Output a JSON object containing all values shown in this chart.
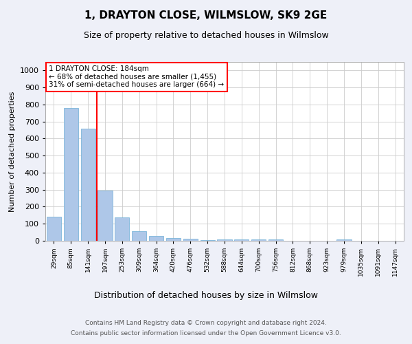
{
  "title": "1, DRAYTON CLOSE, WILMSLOW, SK9 2GE",
  "subtitle": "Size of property relative to detached houses in Wilmslow",
  "xlabel": "Distribution of detached houses by size in Wilmslow",
  "ylabel": "Number of detached properties",
  "bin_labels": [
    "29sqm",
    "85sqm",
    "141sqm",
    "197sqm",
    "253sqm",
    "309sqm",
    "364sqm",
    "420sqm",
    "476sqm",
    "532sqm",
    "588sqm",
    "644sqm",
    "700sqm",
    "756sqm",
    "812sqm",
    "868sqm",
    "923sqm",
    "979sqm",
    "1035sqm",
    "1091sqm",
    "1147sqm"
  ],
  "bar_heights": [
    140,
    778,
    660,
    295,
    138,
    55,
    28,
    18,
    13,
    5,
    10,
    10,
    10,
    8,
    1,
    0,
    0,
    10,
    0,
    0,
    0
  ],
  "bar_color": "#aec7e8",
  "bar_edge_color": "#6baed6",
  "vline_x_index": 3,
  "vline_color": "red",
  "annotation_text": "1 DRAYTON CLOSE: 184sqm\n← 68% of detached houses are smaller (1,455)\n31% of semi-detached houses are larger (664) →",
  "annotation_box_color": "white",
  "annotation_box_edge_color": "red",
  "ylim": [
    0,
    1050
  ],
  "yticks": [
    0,
    100,
    200,
    300,
    400,
    500,
    600,
    700,
    800,
    900,
    1000
  ],
  "footer_line1": "Contains HM Land Registry data © Crown copyright and database right 2024.",
  "footer_line2": "Contains public sector information licensed under the Open Government Licence v3.0.",
  "background_color": "#eef0f8",
  "plot_bg_color": "white",
  "grid_color": "#cccccc",
  "title_fontsize": 11,
  "subtitle_fontsize": 9,
  "ylabel_fontsize": 8,
  "xlabel_fontsize": 9
}
